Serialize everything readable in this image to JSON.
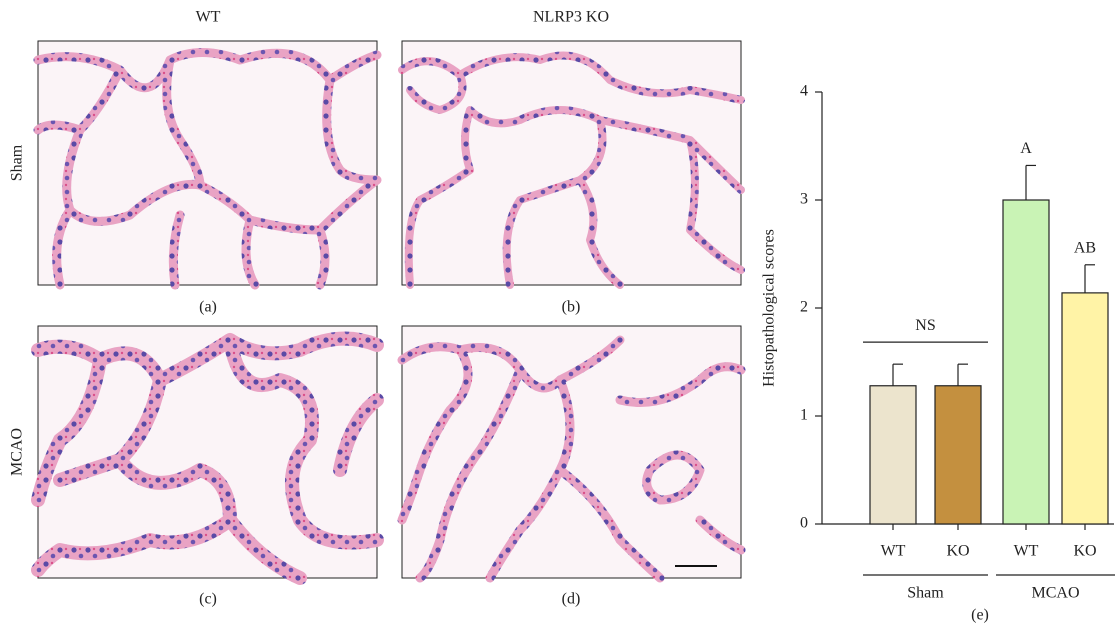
{
  "figure": {
    "column_titles": [
      "WT",
      "NLRP3 KO"
    ],
    "row_titles": [
      "Sham",
      "MCAO"
    ],
    "panel_labels": [
      "(a)",
      "(b)",
      "(c)",
      "(d)"
    ]
  },
  "chart_data": {
    "type": "bar",
    "panel_label": "(e)",
    "ylabel": "Histopathological scores",
    "categories": [
      "WT",
      "KO",
      "WT",
      "KO"
    ],
    "groups": [
      "Sham",
      "MCAO"
    ],
    "values": [
      1.28,
      1.28,
      3.0,
      2.14
    ],
    "errors": [
      0.2,
      0.2,
      0.32,
      0.26
    ],
    "colors": [
      "#ece4cd",
      "#c4903f",
      "#c9f3b5",
      "#fff3a6"
    ],
    "bar_labels": [
      null,
      null,
      "A",
      "AB"
    ],
    "bracket_label": "NS",
    "ylim": [
      0,
      4
    ],
    "yticks": [
      0,
      1,
      2,
      3,
      4
    ]
  }
}
